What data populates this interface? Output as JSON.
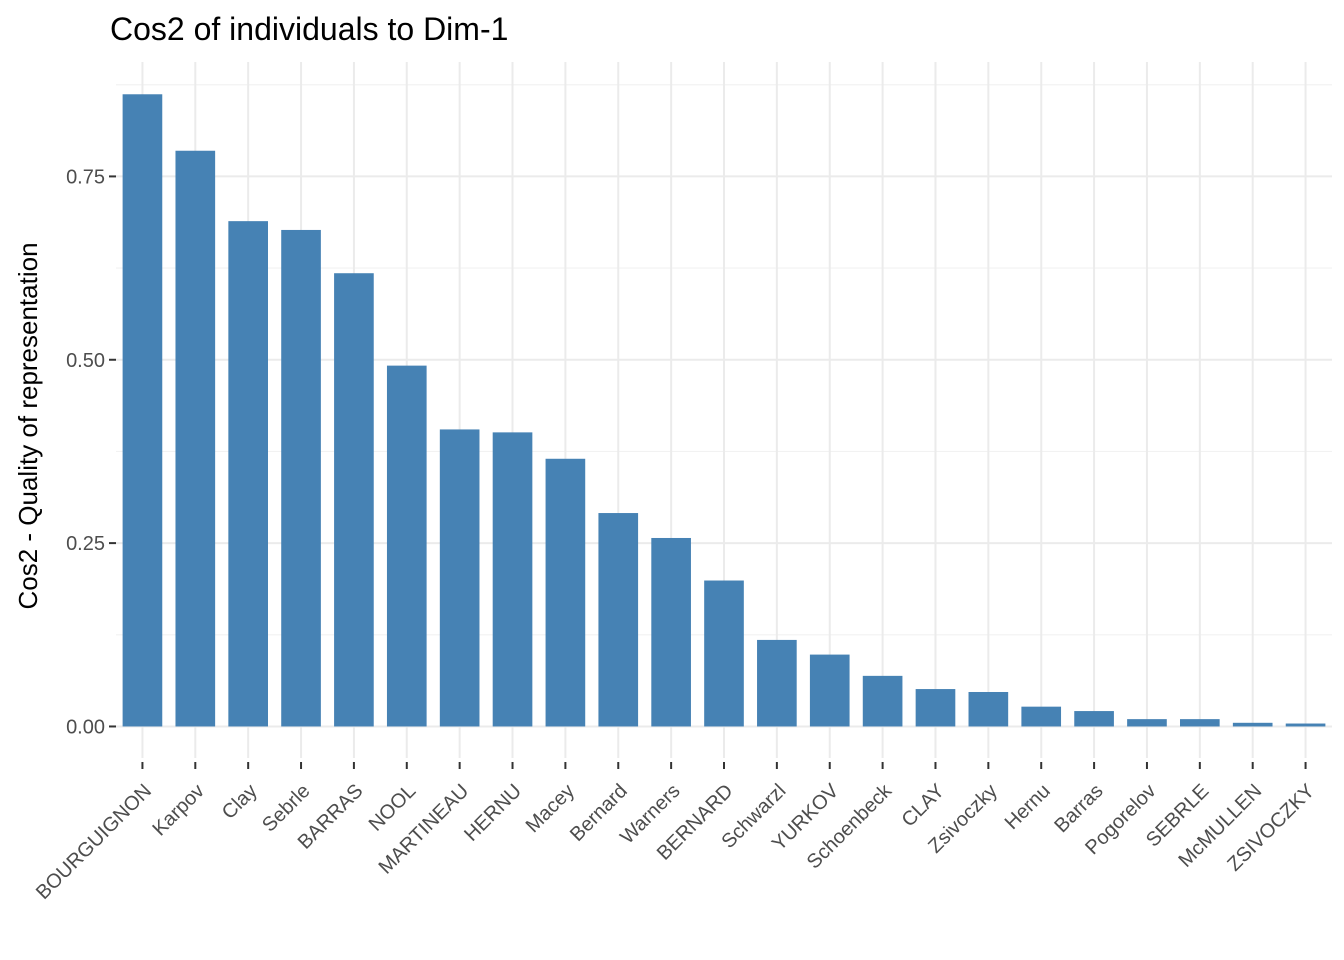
{
  "chart_data": {
    "type": "bar",
    "title": "Cos2 of individuals to Dim-1",
    "xlabel": "",
    "ylabel": "Cos2 - Quality of representation",
    "categories": [
      "BOURGUIGNON",
      "Karpov",
      "Clay",
      "Sebrle",
      "BARRAS",
      "NOOL",
      "MARTINEAU",
      "HERNU",
      "Macey",
      "Bernard",
      "Warners",
      "BERNARD",
      "Schwarzl",
      "YURKOV",
      "Schoenbeck",
      "CLAY",
      "Zsivoczky",
      "Hernu",
      "Barras",
      "Pogorelov",
      "SEBRLE",
      "McMULLEN",
      "ZSIVOCZKY"
    ],
    "values": [
      0.862,
      0.785,
      0.689,
      0.677,
      0.618,
      0.492,
      0.405,
      0.401,
      0.365,
      0.291,
      0.257,
      0.199,
      0.118,
      0.098,
      0.069,
      0.051,
      0.047,
      0.027,
      0.021,
      0.01,
      0.01,
      0.005,
      0.004
    ],
    "yticks": [
      "0.00",
      "0.25",
      "0.50",
      "0.75"
    ],
    "ylim": [
      -0.043,
      0.906
    ],
    "bar_color": "#4682b4",
    "grid": true,
    "legend": "none"
  }
}
